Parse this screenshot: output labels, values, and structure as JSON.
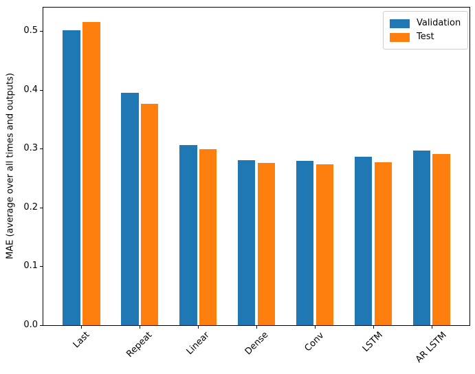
{
  "figure": {
    "background": "#ffffff",
    "axis_color": "#000000",
    "legend_border_color": "#cccccc"
  },
  "chart_data": {
    "type": "bar",
    "title": "",
    "xlabel": "",
    "ylabel": "MAE (average over all times and outputs)",
    "categories": [
      "Last",
      "Repeat",
      "Linear",
      "Dense",
      "Conv",
      "LSTM",
      "AR LSTM"
    ],
    "series": [
      {
        "name": "Validation",
        "color": "#1f77b4",
        "values": [
          0.501,
          0.395,
          0.306,
          0.28,
          0.279,
          0.286,
          0.297
        ]
      },
      {
        "name": "Test",
        "color": "#ff7f0e",
        "values": [
          0.515,
          0.377,
          0.299,
          0.276,
          0.273,
          0.277,
          0.291
        ]
      }
    ],
    "ylim": [
      0,
      0.54
    ],
    "yticks": [
      0.0,
      0.1,
      0.2,
      0.3,
      0.4,
      0.5
    ],
    "ytick_labels": [
      "0.0",
      "0.1",
      "0.2",
      "0.3",
      "0.4",
      "0.5"
    ],
    "xtick_rotation_deg": 45,
    "grid": false,
    "legend": {
      "position": "upper right",
      "items": [
        "Validation",
        "Test"
      ]
    },
    "bar_group": {
      "bar_width_units": 0.3,
      "series_offsets_units": [
        -0.17,
        0.17
      ]
    }
  }
}
